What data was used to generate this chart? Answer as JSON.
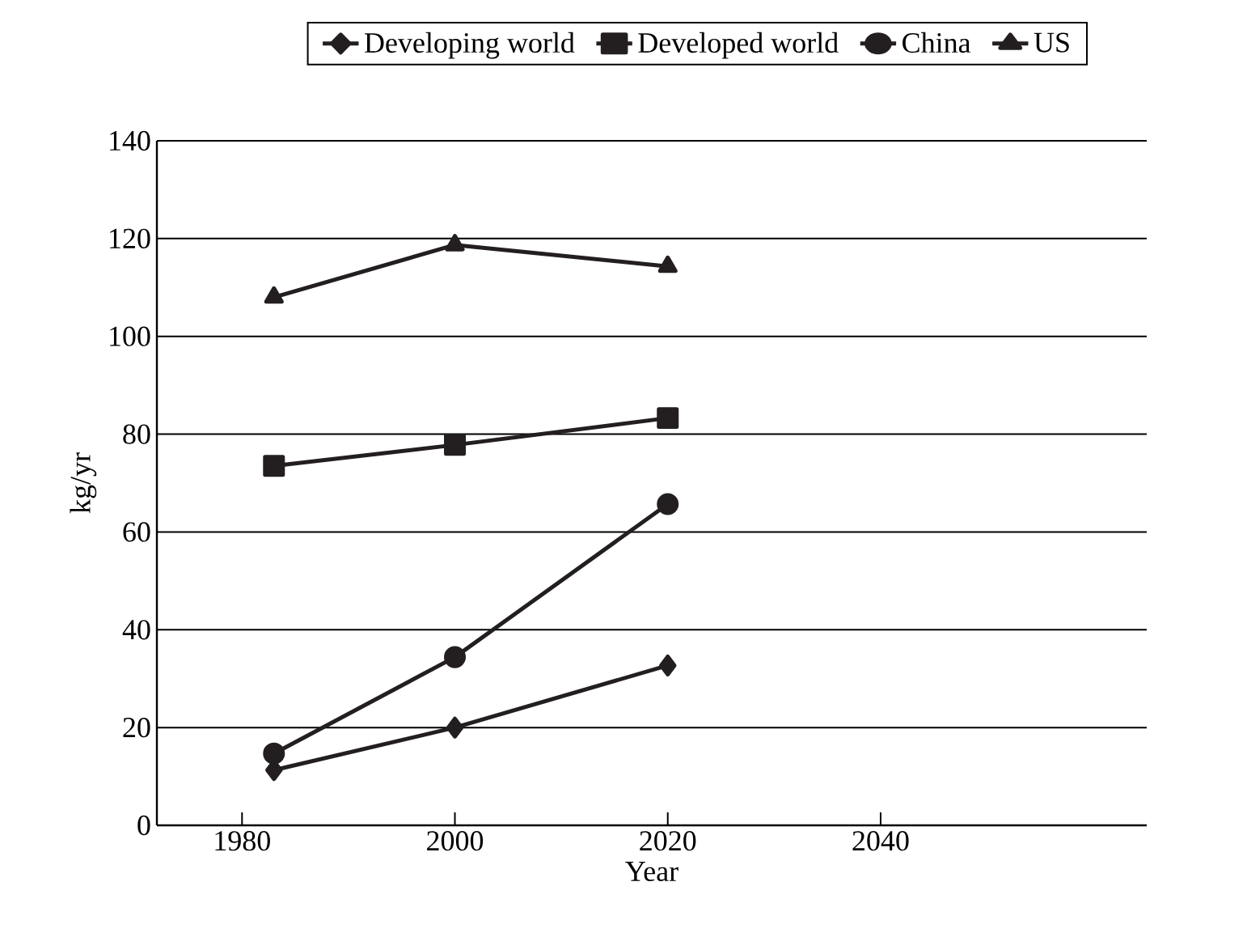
{
  "chart_data": {
    "type": "line",
    "xlabel": "Year",
    "ylabel": "kg/yr",
    "x": [
      1983,
      2000,
      2020
    ],
    "series": [
      {
        "name": "Developing world",
        "color": "#231f20",
        "marker": "diamond",
        "values": [
          11.3,
          20,
          32.7
        ]
      },
      {
        "name": "Developed world",
        "color": "#231f20",
        "marker": "square",
        "values": [
          73.5,
          77.8,
          83.3
        ]
      },
      {
        "name": "China",
        "color": "#231f20",
        "marker": "circle",
        "values": [
          14.7,
          34.4,
          65.7
        ]
      },
      {
        "name": "US",
        "color": "#231f20",
        "marker": "triangle",
        "values": [
          108,
          118.7,
          114.3
        ]
      }
    ],
    "xlim": [
      1972,
      2065
    ],
    "ylim": [
      0,
      140
    ],
    "xticks": [
      1980,
      2000,
      2020,
      2040
    ],
    "yticks": [
      0,
      20,
      40,
      60,
      80,
      100,
      120,
      140
    ],
    "grid": "y",
    "legend": "top",
    "line_style": "solid"
  }
}
